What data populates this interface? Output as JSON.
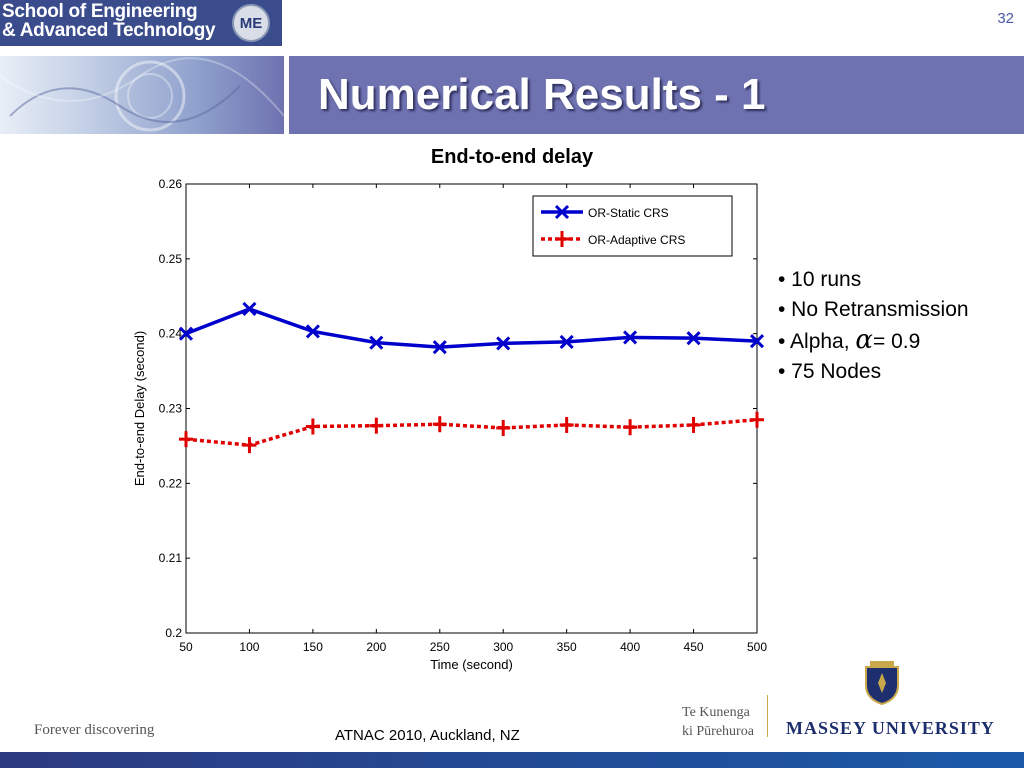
{
  "header": {
    "school_name": "School of Engineering\n& Advanced Technology",
    "logo_text": "ME",
    "page_number": "32",
    "slide_title": "Numerical Results - 1"
  },
  "bullets": {
    "items": [
      "• 10 runs",
      "• No Retransmission",
      "• 75 Nodes"
    ],
    "alpha_prefix": "• Alpha, ",
    "alpha_symbol": "α",
    "alpha_suffix": "= 0.9"
  },
  "footer": {
    "left": "Forever discovering",
    "center": "ATNAC 2010, Auckland, NZ",
    "te_kunenga": "Te Kunenga\nki Pūrehuroa",
    "university": "MASSEY UNIVERSITY"
  },
  "chart_data": {
    "type": "line",
    "title": "End-to-end delay",
    "xlabel": "Time (second)",
    "ylabel": "End-to-end Delay (second)",
    "xlim": [
      50,
      500
    ],
    "ylim": [
      0.2,
      0.26
    ],
    "xticks": [
      50,
      100,
      150,
      200,
      250,
      300,
      350,
      400,
      450,
      500
    ],
    "yticks": [
      "0.2",
      "0.21",
      "0.22",
      "0.23",
      "0.24",
      "0.25",
      "0.26"
    ],
    "grid": false,
    "legend_position": "top-right",
    "x": [
      50,
      100,
      150,
      200,
      250,
      300,
      350,
      400,
      450,
      500
    ],
    "series": [
      {
        "name": "OR-Static CRS",
        "color": "#0000cc",
        "line_style": "solid",
        "marker": "x",
        "values": [
          0.24,
          0.2433,
          0.2403,
          0.2388,
          0.2382,
          0.2387,
          0.2389,
          0.2395,
          0.2394,
          0.239
        ]
      },
      {
        "name": "OR-Adaptive CRS",
        "color": "#e00000",
        "line_style": "dotted",
        "marker": "+",
        "values": [
          0.2259,
          0.2251,
          0.2276,
          0.2277,
          0.2279,
          0.2274,
          0.2278,
          0.2275,
          0.2278,
          0.2285
        ]
      }
    ]
  }
}
